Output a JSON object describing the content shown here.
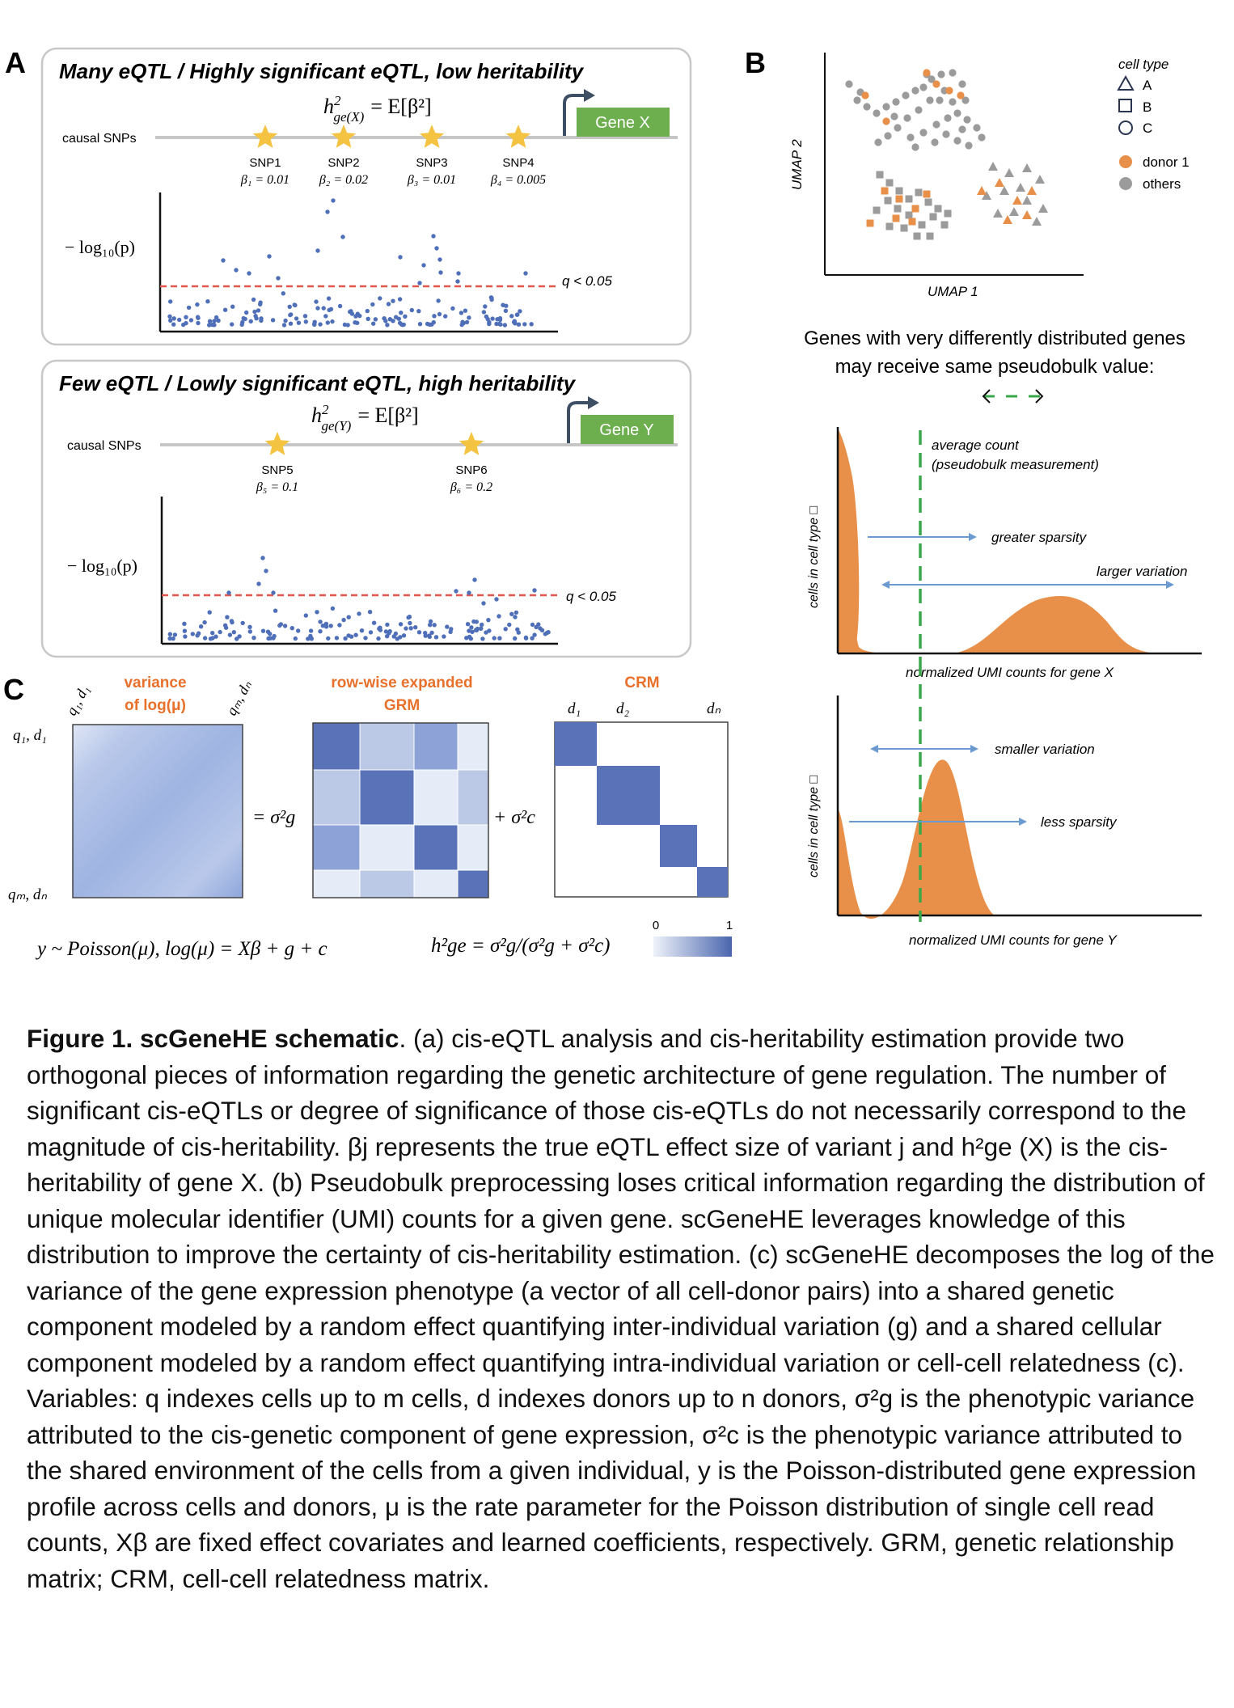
{
  "panel_a": {
    "letter": "A",
    "top": {
      "title": "Many eQTL / Highly significant eQTL, low heritability",
      "formula_lhs": "h",
      "formula_sup": "2",
      "formula_sub": "ge(X)",
      "formula_rhs": "= E[β²]",
      "gene_label": "Gene X",
      "causal_label": "causal SNPs",
      "snps": [
        {
          "name": "SNP1",
          "beta_label": "β₁ = 0.01"
        },
        {
          "name": "SNP2",
          "beta_label": "β₂ = 0.02"
        },
        {
          "name": "SNP3",
          "beta_label": "β₃ = 0.01"
        },
        {
          "name": "SNP4",
          "beta_label": "β₄ = 0.005"
        }
      ],
      "ylabel": "− log₁₀(p)",
      "threshold_label": "q < 0.05"
    },
    "bottom": {
      "title": "Few eQTL / Lowly significant eQTL, high heritability",
      "formula_lhs": "h",
      "formula_sup": "2",
      "formula_sub": "ge(Y)",
      "formula_rhs": "= E[β²]",
      "gene_label": "Gene Y",
      "causal_label": "causal SNPs",
      "snps": [
        {
          "name": "SNP5",
          "beta_label": "β₅ = 0.1"
        },
        {
          "name": "SNP6",
          "beta_label": "β₆ = 0.2"
        }
      ],
      "ylabel": "− log₁₀(p)",
      "threshold_label": "q < 0.05"
    }
  },
  "panel_b": {
    "letter": "B",
    "umap": {
      "xlabel": "UMAP 1",
      "ylabel": "UMAP 2",
      "legend_title": "cell type",
      "legend_shapes": [
        "A",
        "B",
        "C"
      ],
      "legend_colors": [
        "donor 1",
        "others"
      ],
      "donor_color": "#e8904a",
      "others_color": "#9b9b9b"
    },
    "heading_line1": "Genes with very differently distributed genes",
    "heading_line2": "may receive same pseudobulk value:",
    "dist_x": {
      "ylabel": "cells in cell type □",
      "xlabel": "normalized UMI counts for gene X",
      "avg_line1": "average count",
      "avg_line2": "(pseudobulk measurement)",
      "arrow1": "greater sparsity",
      "arrow2": "larger variation"
    },
    "dist_y": {
      "ylabel": "cells in cell type □",
      "xlabel": "normalized UMI counts for gene Y",
      "arrow1": "smaller variation",
      "arrow2": "less sparsity"
    },
    "fill_color": "#e8904a",
    "line_color": "#3aa84a",
    "arrow_color": "#6b9ad0"
  },
  "panel_c": {
    "letter": "C",
    "m1_title_line1": "variance",
    "m1_title_line2": "of log(μ)",
    "m1_top_left": "q₁, d₁",
    "m1_top_right": "qₘ, dₙ",
    "m1_left_top": "q₁, d₁",
    "m1_left_bottom": "qₘ, dₙ",
    "equals_label": "= σ²g",
    "m2_title_line1": "row-wise expanded",
    "m2_title_line2": "GRM",
    "plus_label": "+ σ²c",
    "m3_title": "CRM",
    "m3_cols": [
      "d₁",
      "d₂",
      "dₙ"
    ],
    "eq_model": "y ~ Poisson(μ),   log(μ) = Xβ + g + c",
    "eq_h2": "h²ge = σ²g/(σ²g + σ²c)",
    "colorbar_min": "0",
    "colorbar_max": "1",
    "orange": "#e8702a",
    "blue_dark": "#4a66ad"
  },
  "caption": {
    "lead_bold": "Figure 1. scGeneHE schematic",
    "text": "(a) cis-eQTL analysis and cis-heritability estimation provide two orthogonal pieces of information regarding the genetic architecture of gene regulation. The number of significant cis-eQTLs or degree of significance of those cis-eQTLs do not necessarily correspond to the magnitude of cis-heritability. βj represents the true eQTL effect size of variant j and h²ge (X) is the cis-heritability of gene X. (b) Pseudobulk preprocessing loses critical information regarding the distribution of unique molecular identifier (UMI) counts for a given gene. scGeneHE leverages knowledge of this distribution to improve the certainty of cis-heritability estimation. (c) scGeneHE decomposes the log of the variance of the gene expression phenotype (a vector of all cell-donor pairs) into a shared genetic component modeled by a random effect quantifying inter-individual variation (g) and a shared cellular component modeled by a random effect quantifying intra-individual variation or cell-cell relatedness (c). Variables: q indexes cells up to m cells, d indexes donors up to n donors, σ²g is the phenotypic variance attributed to the cis-genetic component of gene expression, σ²c is the phenotypic variance attributed to the shared environment of the cells from a given individual, y is the Poisson-distributed gene expression profile across cells and donors, μ is the rate parameter for the Poisson distribution of single cell read counts, Xβ are fixed effect covariates and learned coefficients, respectively. GRM, genetic relationship matrix; CRM, cell-cell relatedness matrix."
  }
}
